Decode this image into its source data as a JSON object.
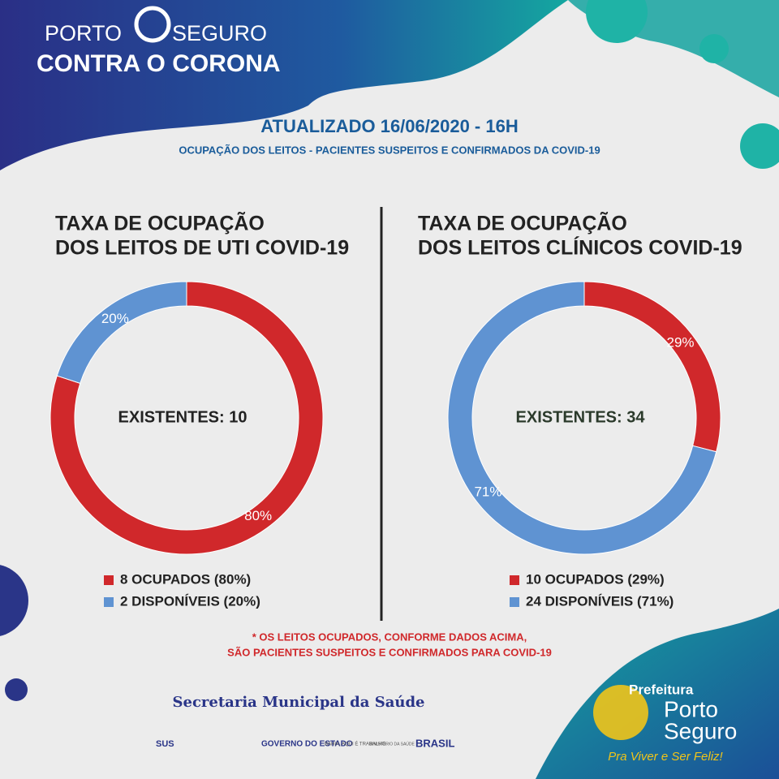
{
  "header": {
    "brand_left": "PORTO",
    "brand_right": "SEGURO",
    "brand_line2": "CONTRA O CORONA",
    "updated": "ATUALIZADO 16/06/2020 - 16H",
    "subtitle": "OCUPAÇÃO DOS LEITOS - PACIENTES SUSPEITOS E CONFIRMADOS DA COVID-19"
  },
  "chart_data": [
    {
      "type": "donut",
      "title_lines": [
        "TAXA DE OCUPAÇÃO",
        "DOS LEITOS DE UTI COVID-19"
      ],
      "center_label": "EXISTENTES: 10",
      "categories": [
        "8 OCUPADOS (80%)",
        "2 DISPONÍVEIS (20%)"
      ],
      "values": [
        80,
        20
      ],
      "value_labels": [
        "80%",
        "20%"
      ],
      "colors": [
        "#d0282b",
        "#5f93d2"
      ]
    },
    {
      "type": "donut",
      "title_lines": [
        "TAXA DE OCUPAÇÃO",
        "DOS LEITOS CLÍNICOS COVID-19"
      ],
      "center_label": "EXISTENTES: 34",
      "categories": [
        "10 OCUPADOS (29%)",
        "24 DISPONÍVEIS (71%)"
      ],
      "values": [
        29,
        71
      ],
      "value_labels": [
        "29%",
        "71%"
      ],
      "colors": [
        "#d0282b",
        "#5f93d2"
      ]
    }
  ],
  "footnote": [
    "* OS LEITOS OCUPADOS, CONFORME DADOS ACIMA,",
    "SÃO PACIENTES SUSPEITOS E CONFIRMADOS PARA COVID-19"
  ],
  "footer": {
    "secretaria": "Secretaria Municipal da Saúde",
    "sus": "SUS",
    "governo": "GOVERNO DO ESTADO",
    "bahia": "BAHIA, AQUI É TRABALHO.",
    "ministerio": "MINISTÉRIO DA SAÚDE",
    "brasil": "BRASIL",
    "prefeitura": "Prefeitura",
    "porto": "Porto",
    "seguro": "Seguro",
    "slogan": "Pra Viver e Ser Feliz!"
  }
}
